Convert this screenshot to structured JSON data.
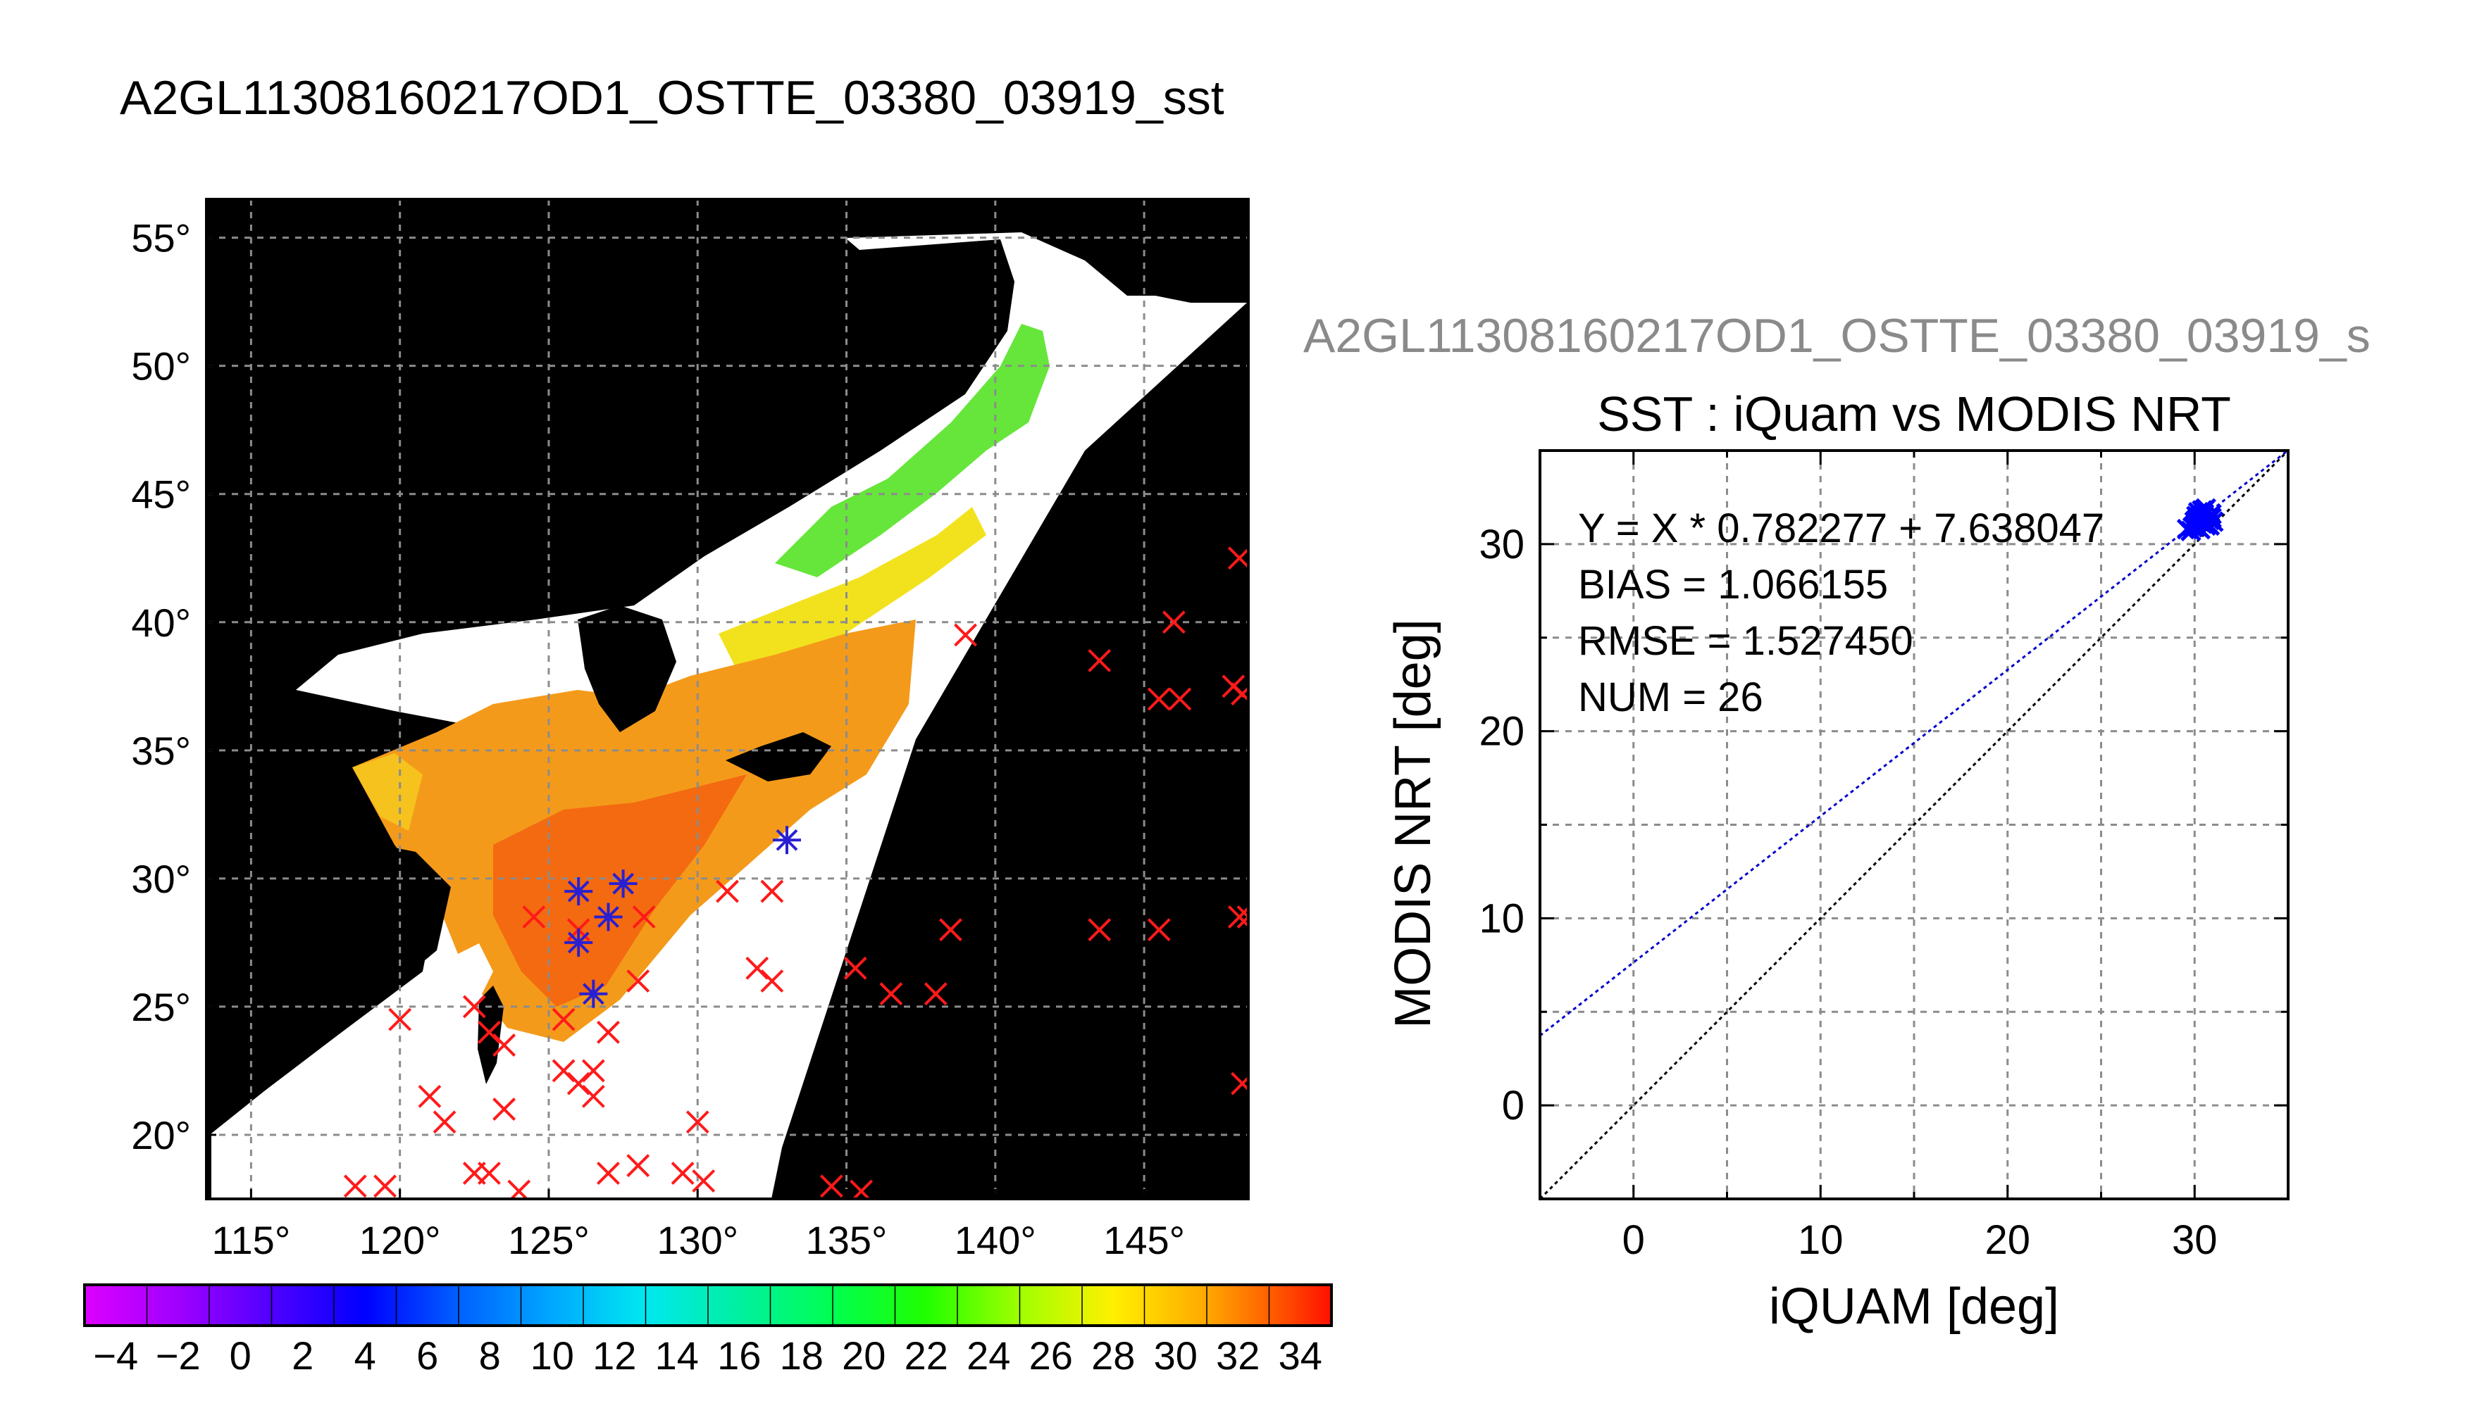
{
  "map": {
    "title": "A2GL11308160217OD1_OSTTE_03380_03919_sst",
    "lon_labels": [
      "115°",
      "120°",
      "125°",
      "130°",
      "135°",
      "140°",
      "145°"
    ],
    "lat_labels": [
      "55°",
      "50°",
      "45°",
      "40°",
      "35°",
      "30°",
      "25°",
      "20°"
    ],
    "colorbar_ticks": [
      "−4",
      "−2",
      "0",
      "2",
      "4",
      "6",
      "8",
      "10",
      "12",
      "14",
      "16",
      "18",
      "20",
      "22",
      "24",
      "26",
      "28",
      "30",
      "32",
      "34"
    ],
    "colorbar_range": [
      -5,
      35
    ],
    "lon_range": [
      113.5,
      148.5
    ],
    "lat_range": [
      17.5,
      56.5
    ],
    "background_color": "#000000",
    "red_x_positions": [
      [
        148.2,
        42.5
      ],
      [
        146.0,
        40.0
      ],
      [
        145.5,
        37.0
      ],
      [
        146.2,
        37.0
      ],
      [
        148.0,
        37.5
      ],
      [
        148.3,
        37.2
      ],
      [
        143.5,
        38.5
      ],
      [
        139.0,
        39.5
      ],
      [
        148.5,
        28.5
      ],
      [
        148.2,
        28.5
      ],
      [
        145.5,
        28.0
      ],
      [
        143.5,
        28.0
      ],
      [
        138.5,
        28.0
      ],
      [
        136.5,
        25.5
      ],
      [
        135.3,
        26.5
      ],
      [
        138.0,
        25.5
      ],
      [
        148.3,
        22.0
      ],
      [
        132.5,
        29.5
      ],
      [
        131.0,
        29.5
      ],
      [
        132.0,
        26.5
      ],
      [
        132.5,
        26.0
      ],
      [
        126.0,
        28.0
      ],
      [
        127.0,
        24.0
      ],
      [
        128.0,
        26.0
      ],
      [
        124.5,
        28.5
      ],
      [
        125.5,
        22.5
      ],
      [
        126.0,
        22.0
      ],
      [
        126.5,
        22.5
      ],
      [
        126.5,
        21.5
      ],
      [
        125.5,
        24.5
      ],
      [
        120.0,
        24.5
      ],
      [
        122.5,
        25.0
      ],
      [
        123.0,
        24.0
      ],
      [
        123.5,
        23.5
      ],
      [
        121.0,
        21.5
      ],
      [
        121.5,
        20.5
      ],
      [
        123.5,
        21.0
      ],
      [
        122.5,
        18.5
      ],
      [
        123.0,
        18.5
      ],
      [
        124.0,
        17.8
      ],
      [
        118.5,
        18.0
      ],
      [
        119.5,
        18.0
      ],
      [
        127.0,
        18.5
      ],
      [
        128.0,
        18.8
      ],
      [
        129.5,
        18.5
      ],
      [
        130.2,
        18.2
      ],
      [
        130.0,
        20.5
      ],
      [
        134.5,
        18.0
      ],
      [
        135.5,
        17.8
      ],
      [
        128.2,
        28.5
      ]
    ],
    "blue_star_positions": [
      [
        126.0,
        29.5
      ],
      [
        127.0,
        28.5
      ],
      [
        127.5,
        29.8
      ],
      [
        126.0,
        27.5
      ],
      [
        126.5,
        25.5
      ],
      [
        133.0,
        31.5
      ]
    ]
  },
  "scatter": {
    "header": "A2GL11308160217OD1_OSTTE_03380_03919_s",
    "title": "SST : iQuam vs MODIS NRT",
    "xlabel": "iQUAM [deg]",
    "ylabel": "MODIS NRT [deg]",
    "xticks": [
      "0",
      "10",
      "20",
      "30"
    ],
    "yticks": [
      "0",
      "10",
      "20",
      "30"
    ],
    "stats": {
      "equation": "Y = X * 0.782277 + 7.638047",
      "bias": "BIAS = 1.066155",
      "rmse": "RMSE = 1.527450",
      "num": "NUM = 26"
    }
  },
  "chart_data": {
    "type": "scatter",
    "title": "SST : iQuam vs MODIS NRT",
    "xlabel": "iQUAM [deg]",
    "ylabel": "MODIS NRT [deg]",
    "xlim": [
      -5,
      35
    ],
    "ylim": [
      -5,
      35
    ],
    "grid": true,
    "fit": {
      "slope": 0.782277,
      "intercept": 7.638047,
      "color": "#0000cc"
    },
    "identity_line": {
      "slope": 1,
      "intercept": 0,
      "color": "#000000"
    },
    "series": [
      {
        "color": "#0000ff",
        "marker": "x",
        "x": [
          29.6,
          29.8,
          30.0,
          30.1,
          30.2,
          30.3,
          30.4,
          30.5,
          30.6,
          30.7,
          30.8,
          30.9,
          31.0,
          29.9,
          30.2,
          30.4,
          30.6,
          30.8,
          30.3,
          30.5,
          30.1,
          30.7,
          30.0,
          30.9,
          30.4,
          30.6
        ],
        "y": [
          30.8,
          30.7,
          31.0,
          31.3,
          30.9,
          31.5,
          31.1,
          31.8,
          31.2,
          31.4,
          31.0,
          31.6,
          31.2,
          30.9,
          31.7,
          31.4,
          31.9,
          31.3,
          30.8,
          31.6,
          31.5,
          31.1,
          31.2,
          31.4,
          31.8,
          31.0
        ]
      }
    ]
  }
}
